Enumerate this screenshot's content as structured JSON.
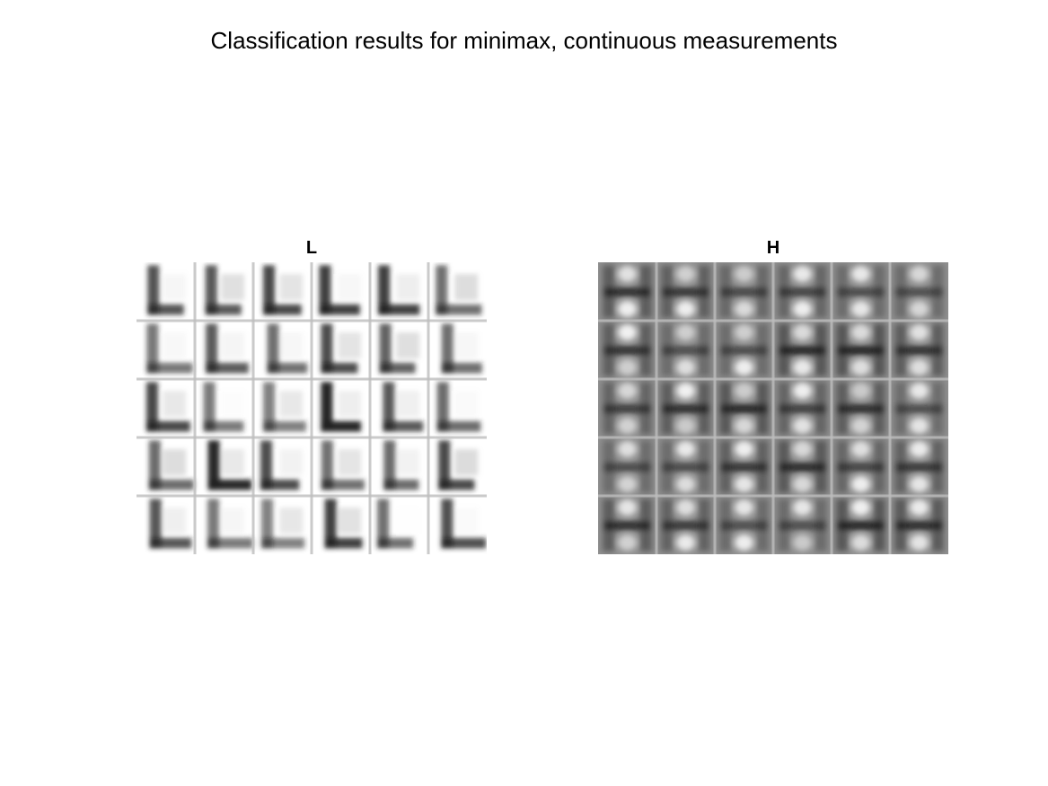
{
  "figure": {
    "title": "Classification results for minimax, continuous measurements"
  },
  "panels": [
    {
      "letter": "L",
      "grid_rows": 5,
      "grid_cols": 6,
      "tile_color": "#222222",
      "separator_color": "#bdbdbd"
    },
    {
      "letter": "H",
      "grid_rows": 5,
      "grid_cols": 6,
      "tile_color": "#222222",
      "separator_color": "#bdbdbd"
    }
  ]
}
